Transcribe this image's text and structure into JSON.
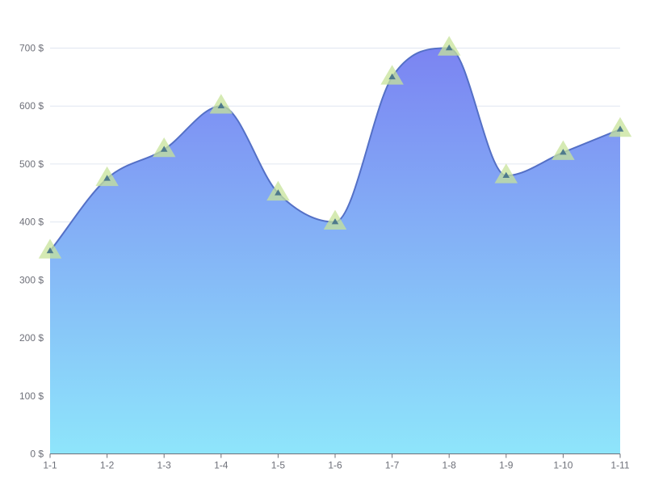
{
  "chart_data": {
    "type": "area",
    "title": "",
    "xlabel": "",
    "ylabel": "",
    "categories": [
      "1-1",
      "1-2",
      "1-3",
      "1-4",
      "1-5",
      "1-6",
      "1-7",
      "1-8",
      "1-9",
      "1-10",
      "1-11"
    ],
    "series": [
      {
        "values": [
          350,
          475,
          525,
          600,
          450,
          400,
          650,
          700,
          480,
          520,
          560
        ]
      }
    ],
    "ylim": [
      0,
      700
    ],
    "y_ticks": [
      0,
      100,
      200,
      300,
      400,
      500,
      600,
      700
    ],
    "y_tick_suffix": " $",
    "smooth": true,
    "grid": true,
    "legend": "none",
    "marker": "triangle",
    "colors": {
      "line": "#5470c6",
      "area_top": "#7b84f2",
      "area_bottom": "#8ee5fb",
      "marker": "#c7e39a",
      "marker_core": "#4f7a8c",
      "grid": "#e0e6f1",
      "axis": "#6e7079",
      "text": "#6e7079"
    }
  }
}
